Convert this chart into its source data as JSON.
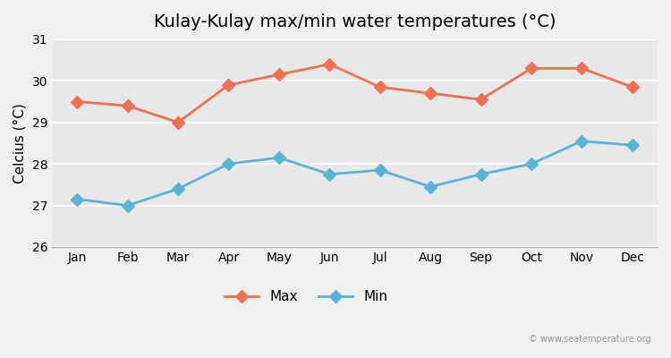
{
  "title": "Kulay-Kulay max/min water temperatures (°C)",
  "ylabel": "Celcius (°C)",
  "months": [
    "Jan",
    "Feb",
    "Mar",
    "Apr",
    "May",
    "Jun",
    "Jul",
    "Aug",
    "Sep",
    "Oct",
    "Nov",
    "Dec"
  ],
  "max_values": [
    29.5,
    29.4,
    29.0,
    29.9,
    30.15,
    30.4,
    29.85,
    29.7,
    29.55,
    30.3,
    30.3,
    29.85
  ],
  "min_values": [
    27.15,
    27.0,
    27.4,
    28.0,
    28.15,
    27.75,
    27.85,
    27.45,
    27.75,
    28.0,
    28.55,
    28.45
  ],
  "max_color": "#f07050",
  "min_color": "#5ab4d4",
  "ylim": [
    26,
    31
  ],
  "yticks": [
    26,
    27,
    28,
    29,
    30,
    31
  ],
  "bg_color": "#f0f0f0",
  "plot_bg_color": "#e8e8e8",
  "watermark": "© www.seatemperature.org",
  "legend_labels": [
    "Max",
    "Min"
  ],
  "title_fontsize": 14,
  "label_fontsize": 11,
  "tick_fontsize": 10,
  "marker": "D",
  "markersize": 7,
  "linewidth": 2.0
}
